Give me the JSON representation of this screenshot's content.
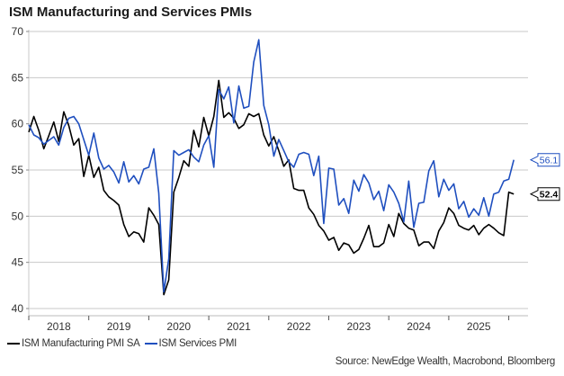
{
  "chart_data": {
    "type": "line",
    "title": "ISM Manufacturing and Services PMIs",
    "xlabel": "",
    "ylabel": "",
    "ylim": [
      40,
      70
    ],
    "yticks": [
      40,
      45,
      50,
      55,
      60,
      65,
      70
    ],
    "x_start": "2018-01",
    "x_end": "2026-02",
    "xtick_labels": [
      "2018",
      "2019",
      "2020",
      "2021",
      "2022",
      "2023",
      "2024",
      "2025"
    ],
    "grid": true,
    "legend_position": "bottom-left",
    "series": [
      {
        "name": "ISM Manufacturing PMI SA",
        "color": "#000000",
        "end_label": "52.4",
        "values": [
          59.1,
          60.8,
          59.3,
          57.3,
          58.7,
          60.2,
          58.1,
          61.3,
          59.8,
          57.7,
          58.4,
          54.3,
          56.6,
          54.2,
          55.3,
          52.8,
          52.1,
          51.7,
          51.2,
          49.1,
          47.8,
          48.3,
          48.1,
          47.2,
          50.9,
          50.1,
          49.1,
          41.5,
          43.1,
          52.6,
          54.2,
          56.0,
          55.4,
          59.3,
          57.5,
          60.7,
          58.7,
          60.8,
          64.7,
          60.7,
          61.2,
          60.6,
          59.5,
          59.9,
          61.1,
          60.8,
          61.1,
          58.8,
          57.6,
          58.6,
          57.1,
          55.4,
          56.1,
          53.0,
          52.8,
          52.8,
          50.9,
          50.2,
          49.0,
          48.4,
          47.4,
          47.7,
          46.3,
          47.1,
          46.9,
          46.0,
          46.4,
          47.6,
          49.0,
          46.7,
          46.7,
          47.1,
          49.1,
          47.8,
          50.3,
          49.2,
          48.7,
          48.5,
          46.8,
          47.2,
          47.2,
          46.5,
          48.4,
          49.3,
          50.9,
          50.3,
          49.0,
          48.7,
          48.5,
          49.0,
          48.0,
          48.7,
          49.1,
          48.7,
          48.2,
          47.9,
          52.6,
          52.4
        ]
      },
      {
        "name": "ISM Services PMI",
        "color": "#1f4fbf",
        "end_label": "56.1",
        "values": [
          59.9,
          58.8,
          58.5,
          57.8,
          58.2,
          58.6,
          57.7,
          59.6,
          60.6,
          60.8,
          60.0,
          58.3,
          56.6,
          59.0,
          56.3,
          55.1,
          55.5,
          54.8,
          53.6,
          55.9,
          53.7,
          54.4,
          53.5,
          55.1,
          55.3,
          57.3,
          52.5,
          41.8,
          45.4,
          57.1,
          56.6,
          56.9,
          57.2,
          56.4,
          55.9,
          57.7,
          58.7,
          55.3,
          63.7,
          62.7,
          64.0,
          60.1,
          64.1,
          61.7,
          61.9,
          66.7,
          69.1,
          62.0,
          59.9,
          56.5,
          58.3,
          57.1,
          55.9,
          55.3,
          56.7,
          56.9,
          56.7,
          54.4,
          56.5,
          49.2,
          55.2,
          55.1,
          51.2,
          51.9,
          50.3,
          53.9,
          52.7,
          54.5,
          53.6,
          51.8,
          52.7,
          50.6,
          53.4,
          52.6,
          51.4,
          49.4,
          53.8,
          48.8,
          51.4,
          51.5,
          54.9,
          56.0,
          52.1,
          54.0,
          52.8,
          53.5,
          50.8,
          51.6,
          49.9,
          50.8,
          50.1,
          52.0,
          50.0,
          52.4,
          52.6,
          53.8,
          54.0,
          56.1
        ]
      }
    ]
  },
  "legend": {
    "items": [
      {
        "label": "ISM Manufacturing PMI SA",
        "color": "#000000"
      },
      {
        "label": "ISM Services PMI",
        "color": "#1f4fbf"
      }
    ]
  },
  "source_text": "Source: NewEdge Wealth, Macrobond, Bloomberg"
}
